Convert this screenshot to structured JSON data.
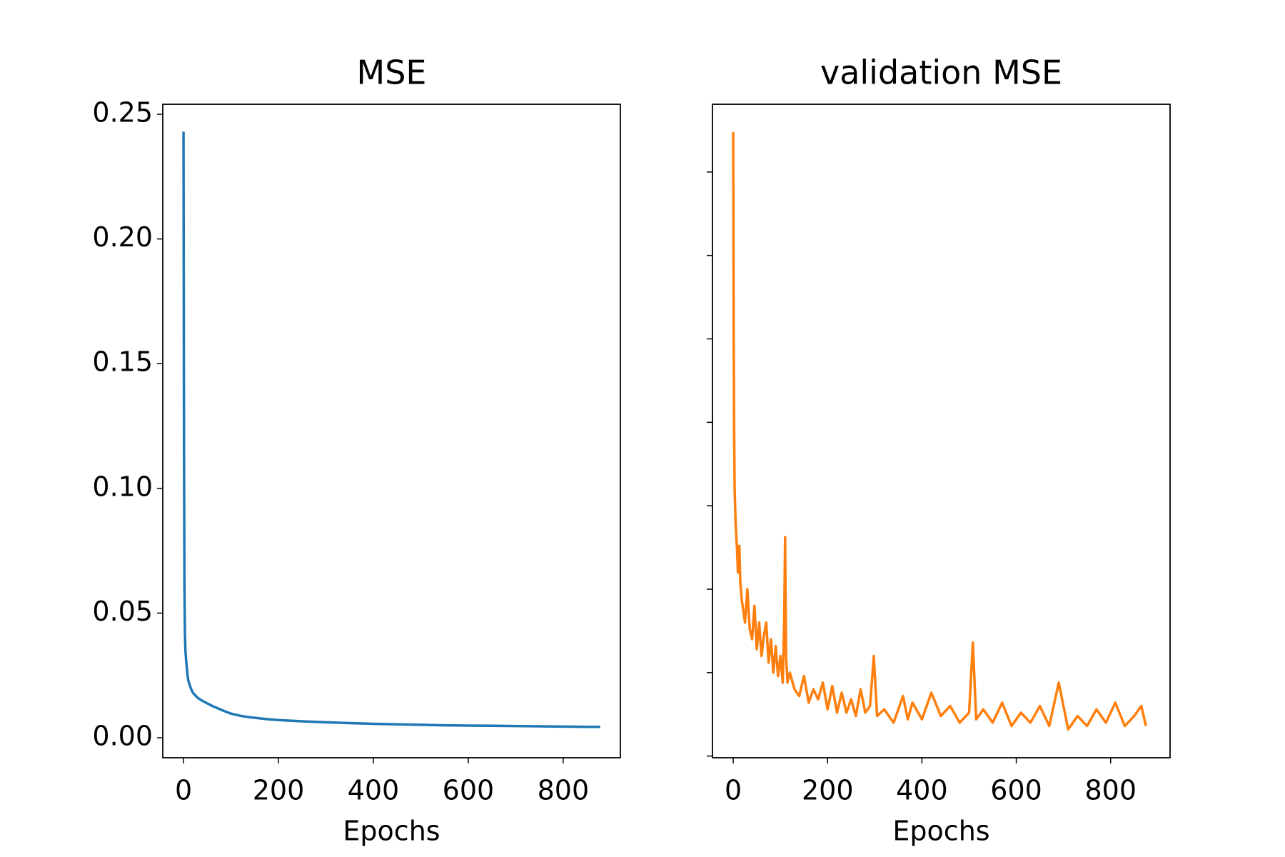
{
  "chart_data": [
    {
      "type": "line",
      "title": "MSE",
      "xlabel": "Epochs",
      "color": "#1f77b4",
      "x": [
        0,
        1,
        2,
        3,
        4,
        6,
        8,
        10,
        15,
        20,
        30,
        40,
        50,
        60,
        70,
        80,
        90,
        100,
        120,
        140,
        160,
        180,
        200,
        250,
        300,
        350,
        400,
        450,
        500,
        550,
        600,
        650,
        700,
        750,
        800,
        850,
        878
      ],
      "values": [
        0.243,
        0.12,
        0.06,
        0.042,
        0.035,
        0.03,
        0.026,
        0.023,
        0.02,
        0.018,
        0.016,
        0.0148,
        0.0138,
        0.0128,
        0.012,
        0.0112,
        0.0104,
        0.0097,
        0.0088,
        0.0082,
        0.0078,
        0.0074,
        0.0071,
        0.0066,
        0.0062,
        0.0059,
        0.0056,
        0.0054,
        0.0052,
        0.005,
        0.0049,
        0.0048,
        0.0047,
        0.0046,
        0.0045,
        0.0044,
        0.0044
      ],
      "xlim": [
        -43.7,
        920.5
      ],
      "ylim": [
        -0.008,
        0.254
      ],
      "xticks": [
        0,
        200,
        400,
        600,
        800
      ],
      "yticks": [
        {
          "value": 0,
          "label": "0.00"
        },
        {
          "value": 0.05,
          "label": "0.05"
        },
        {
          "value": 0.1,
          "label": "0.10"
        },
        {
          "value": 0.15,
          "label": "0.15"
        },
        {
          "value": 0.2,
          "label": "0.20"
        },
        {
          "value": 0.25,
          "label": "0.25"
        }
      ],
      "show_ytick_labels": true
    },
    {
      "type": "line",
      "title": "validation MSE",
      "xlabel": "Epochs",
      "color": "#ff7f0e",
      "x": [
        0,
        1,
        2,
        3,
        5,
        8,
        10,
        13,
        15,
        18,
        20,
        25,
        30,
        35,
        40,
        45,
        50,
        55,
        60,
        65,
        70,
        75,
        80,
        85,
        90,
        95,
        100,
        105,
        108,
        110,
        112,
        115,
        120,
        130,
        140,
        150,
        160,
        170,
        180,
        190,
        200,
        210,
        220,
        230,
        240,
        250,
        260,
        270,
        280,
        290,
        298,
        305,
        320,
        340,
        360,
        370,
        380,
        400,
        420,
        440,
        460,
        480,
        500,
        508,
        515,
        530,
        550,
        570,
        590,
        610,
        630,
        650,
        670,
        690,
        710,
        730,
        750,
        770,
        790,
        810,
        830,
        850,
        865,
        875
      ],
      "values": [
        0.187,
        0.125,
        0.097,
        0.08,
        0.07,
        0.062,
        0.055,
        0.063,
        0.052,
        0.047,
        0.045,
        0.04,
        0.05,
        0.038,
        0.035,
        0.045,
        0.032,
        0.04,
        0.03,
        0.036,
        0.04,
        0.028,
        0.035,
        0.025,
        0.033,
        0.024,
        0.03,
        0.022,
        0.04,
        0.0656,
        0.03,
        0.022,
        0.025,
        0.02,
        0.018,
        0.024,
        0.016,
        0.02,
        0.017,
        0.022,
        0.014,
        0.021,
        0.013,
        0.019,
        0.013,
        0.017,
        0.012,
        0.02,
        0.013,
        0.015,
        0.03,
        0.012,
        0.014,
        0.01,
        0.018,
        0.011,
        0.016,
        0.011,
        0.019,
        0.012,
        0.015,
        0.01,
        0.013,
        0.034,
        0.011,
        0.014,
        0.01,
        0.016,
        0.009,
        0.013,
        0.01,
        0.015,
        0.009,
        0.022,
        0.008,
        0.012,
        0.009,
        0.014,
        0.01,
        0.016,
        0.009,
        0.012,
        0.015,
        0.009
      ],
      "xlim": [
        -44,
        926
      ],
      "ylim": [
        -0.0005,
        0.1953
      ],
      "xticks": [
        0,
        200,
        400,
        600,
        800
      ],
      "yticks": [
        0,
        0.025,
        0.05,
        0.075,
        0.1,
        0.125,
        0.15,
        0.175
      ],
      "show_ytick_labels": false
    }
  ]
}
